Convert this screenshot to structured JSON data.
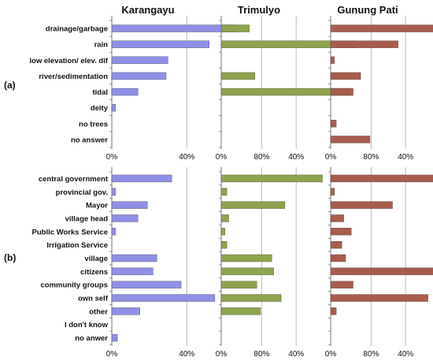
{
  "chart_data": [
    {
      "panel": "(a)",
      "type": "bar",
      "orientation": "horizontal",
      "categories": [
        "drainage/garbage",
        "rain",
        "low elevation/ elev. dif",
        "river/sedimentation",
        "tidal",
        "deity",
        "no trees",
        "no answer"
      ],
      "xlim": [
        0,
        100
      ],
      "tick_labels": [
        "0%",
        "40%",
        "80%"
      ],
      "series": [
        {
          "name": "Karangayu",
          "color": "#8f8fe6",
          "values": [
            67,
            52,
            30,
            29,
            14,
            2,
            0,
            0
          ]
        },
        {
          "name": "Trimulyo",
          "color": "#8da34c",
          "values": [
            15,
            72,
            0,
            18,
            69,
            0,
            0,
            0
          ]
        },
        {
          "name": "Gunung Pati",
          "color": "#a85c4c",
          "values": [
            56,
            36,
            2,
            16,
            12,
            0,
            3,
            21
          ]
        }
      ]
    },
    {
      "panel": "(b)",
      "type": "bar",
      "orientation": "horizontal",
      "categories": [
        "central government",
        "provincial gov.",
        "Mayor",
        "village head",
        "Public Works Service",
        "Irrigation Service",
        "village",
        "citizens",
        "community groups",
        "own self",
        "other",
        "I don't know",
        "no anwer"
      ],
      "xlim": [
        0,
        100
      ],
      "tick_labels": [
        "0%",
        "40%",
        "80%"
      ],
      "series": [
        {
          "name": "Karangayu",
          "color": "#8f8fe6",
          "values": [
            32,
            2,
            19,
            14,
            2,
            0,
            24,
            22,
            37,
            55,
            15,
            0,
            3
          ]
        },
        {
          "name": "Trimulyo",
          "color": "#8da34c",
          "values": [
            54,
            3,
            34,
            4,
            2,
            3,
            27,
            28,
            19,
            32,
            21,
            0,
            0
          ]
        },
        {
          "name": "Gunung Pati",
          "color": "#a85c4c",
          "values": [
            69,
            2,
            33,
            7,
            11,
            6,
            8,
            58,
            12,
            52,
            3,
            0,
            0
          ]
        }
      ]
    }
  ],
  "columns": [
    "Karangayu",
    "Trimulyo",
    "Gunung Pati"
  ],
  "panel_labels": [
    "(a)",
    "(b)"
  ],
  "colors": {
    "grid": "#bcbcbc",
    "text": "#111111"
  }
}
